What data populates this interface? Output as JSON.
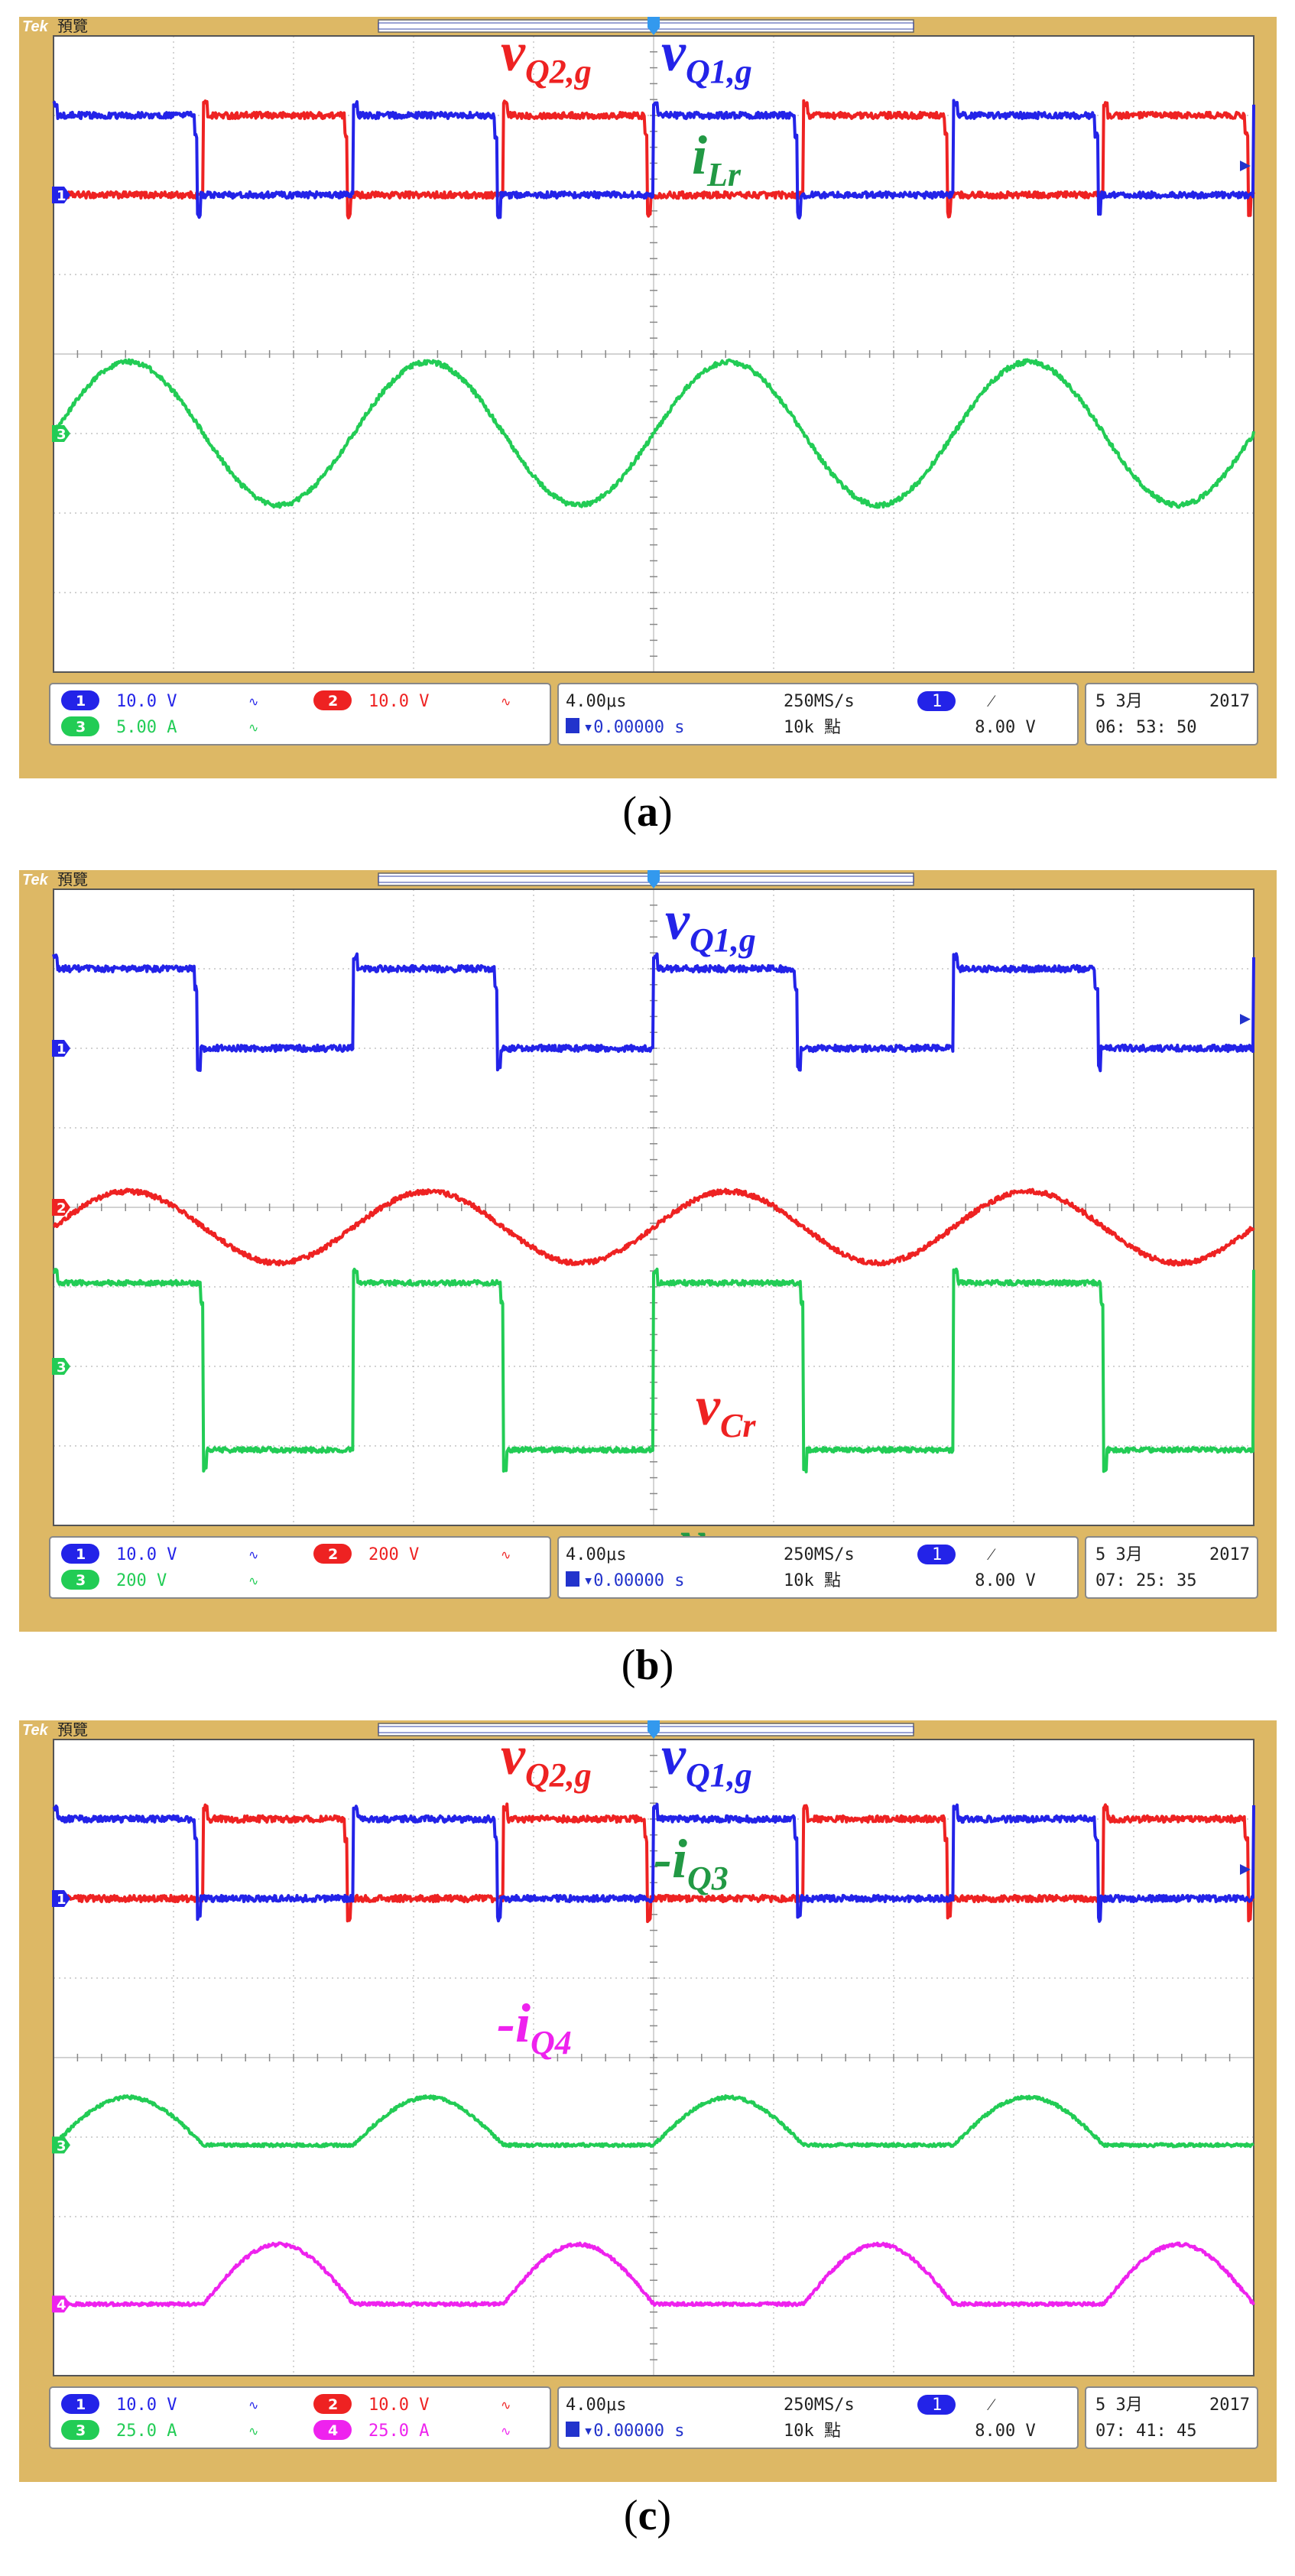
{
  "colors": {
    "ch1": "#2323e8",
    "ch2": "#ee2222",
    "ch3": "#22cc55",
    "ch4": "#ee22ee",
    "bezel": "#ddb865",
    "screen": "#ffffff",
    "grid": "#b8b8b8",
    "label_ch3": "#229944"
  },
  "panels": [
    {
      "id": "a",
      "caption": "a",
      "header": {
        "brand": "Tek",
        "mode": "預覽"
      },
      "chart_data": {
        "type": "line",
        "title": "",
        "xlabel": "",
        "ylabel": "",
        "x_unit": "μs",
        "xlim": [
          -20,
          20
        ],
        "ylim": [
          -4,
          4
        ],
        "grid": true,
        "series": [
          {
            "name": "vQ2,g",
            "channel": 2,
            "values": {
              "kind": "square",
              "period_us": 10.0,
              "phase_us": 5.0,
              "duty": 0.48,
              "hi_div": 3.0,
              "lo_div": 2.0,
              "noise": 0.04
            }
          },
          {
            "name": "vQ1,g",
            "channel": 1,
            "values": {
              "kind": "square",
              "period_us": 10.0,
              "phase_us": 0.0,
              "duty": 0.48,
              "hi_div": 3.0,
              "lo_div": 2.0,
              "noise": 0.04
            }
          },
          {
            "name": "iLr",
            "channel": 3,
            "values": {
              "kind": "sine",
              "period_us": 10.0,
              "phase_us": 0.0,
              "amplitude_div": 0.9,
              "offset_div": -1.0,
              "noise": 0.03
            }
          }
        ],
        "trace_labels": [
          {
            "base": "v",
            "sub": "Q2,g",
            "sign": "",
            "channel": 2
          },
          {
            "base": "v",
            "sub": "Q1,g",
            "sign": "",
            "channel": 1
          },
          {
            "base": "i",
            "sub": "Lr",
            "sign": "",
            "channel": 3
          }
        ]
      },
      "markers": [
        {
          "text": "1",
          "channel": 1
        },
        {
          "text": "3",
          "channel": 3
        }
      ],
      "status": {
        "row1": [
          {
            "badge": "1",
            "channel": 1,
            "value": "10.0 V"
          },
          {
            "badge": "2",
            "channel": 2,
            "value": "10.0 V"
          }
        ],
        "row2": [
          {
            "badge": "3",
            "channel": 3,
            "value": "5.00 A"
          }
        ],
        "timebase": "4.00μs",
        "delay": "▾0.00000 s",
        "sample_rate": "250MS/s",
        "record": "10k 點",
        "trigger_channel": "1",
        "trigger_slope": "⁄",
        "trigger_level": "8.00 V",
        "date": "5 3月",
        "year": "2017",
        "time": "06: 53: 50"
      }
    },
    {
      "id": "b",
      "caption": "b",
      "header": {
        "brand": "Tek",
        "mode": "預覽"
      },
      "chart_data": {
        "type": "line",
        "title": "",
        "xlabel": "",
        "ylabel": "",
        "x_unit": "μs",
        "xlim": [
          -20,
          20
        ],
        "ylim": [
          -4,
          4
        ],
        "grid": true,
        "series": [
          {
            "name": "vQ1,g",
            "channel": 1,
            "values": {
              "kind": "square",
              "period_us": 10.0,
              "phase_us": 0.0,
              "duty": 0.48,
              "hi_div": 3.0,
              "lo_div": 2.0,
              "noise": 0.04
            }
          },
          {
            "name": "vCr",
            "channel": 2,
            "values": {
              "kind": "sine",
              "period_us": 10.0,
              "phase_us": 0.0,
              "amplitude_div": 0.45,
              "offset_div": -0.25,
              "noise": 0.03
            }
          },
          {
            "name": "vab",
            "channel": 3,
            "values": {
              "kind": "square",
              "period_us": 10.0,
              "phase_us": 0.0,
              "duty": 0.5,
              "hi_div": -0.95,
              "lo_div": -3.05,
              "noise": 0.03
            }
          }
        ],
        "trace_labels": [
          {
            "base": "v",
            "sub": "Q1,g",
            "sign": "",
            "channel": 1
          },
          {
            "base": "v",
            "sub": "Cr",
            "sign": "",
            "channel": 2
          },
          {
            "base": "v",
            "sub": "ab",
            "sign": "",
            "channel": 3
          }
        ]
      },
      "markers": [
        {
          "text": "1",
          "channel": 1
        },
        {
          "text": "2",
          "channel": 2
        },
        {
          "text": "3",
          "channel": 3
        }
      ],
      "status": {
        "row1": [
          {
            "badge": "1",
            "channel": 1,
            "value": "10.0 V"
          },
          {
            "badge": "2",
            "channel": 2,
            "value": "200 V"
          }
        ],
        "row2": [
          {
            "badge": "3",
            "channel": 3,
            "value": "200 V"
          }
        ],
        "timebase": "4.00μs",
        "delay": "▾0.00000 s",
        "sample_rate": "250MS/s",
        "record": "10k 點",
        "trigger_channel": "1",
        "trigger_slope": "⁄",
        "trigger_level": "8.00 V",
        "date": "5 3月",
        "year": "2017",
        "time": "07: 25: 35"
      }
    },
    {
      "id": "c",
      "caption": "c",
      "header": {
        "brand": "Tek",
        "mode": "預覽"
      },
      "chart_data": {
        "type": "line",
        "title": "",
        "xlabel": "",
        "ylabel": "",
        "x_unit": "μs",
        "xlim": [
          -20,
          20
        ],
        "ylim": [
          -4,
          4
        ],
        "grid": true,
        "series": [
          {
            "name": "vQ2,g",
            "channel": 2,
            "values": {
              "kind": "square",
              "period_us": 10.0,
              "phase_us": 5.0,
              "duty": 0.48,
              "hi_div": 3.0,
              "lo_div": 2.0,
              "noise": 0.04
            }
          },
          {
            "name": "vQ1,g",
            "channel": 1,
            "values": {
              "kind": "square",
              "period_us": 10.0,
              "phase_us": 0.0,
              "duty": 0.48,
              "hi_div": 3.0,
              "lo_div": 2.0,
              "noise": 0.04
            }
          },
          {
            "name": "-iQ3",
            "channel": 3,
            "values": {
              "kind": "halfsine",
              "period_us": 10.0,
              "phase_us": 0.0,
              "amplitude_div": 0.6,
              "offset_div": -1.1,
              "noise": 0.02
            }
          },
          {
            "name": "-iQ4",
            "channel": 4,
            "values": {
              "kind": "halfsine",
              "period_us": 10.0,
              "phase_us": 5.0,
              "amplitude_div": 0.75,
              "offset_div": -3.1,
              "noise": 0.02
            }
          }
        ],
        "trace_labels": [
          {
            "base": "v",
            "sub": "Q2,g",
            "sign": "",
            "channel": 2
          },
          {
            "base": "v",
            "sub": "Q1,g",
            "sign": "",
            "channel": 1
          },
          {
            "base": "i",
            "sub": "Q3",
            "sign": "-",
            "channel": 3
          },
          {
            "base": "i",
            "sub": "Q4",
            "sign": "-",
            "channel": 4
          }
        ]
      },
      "markers": [
        {
          "text": "1",
          "channel": 1
        },
        {
          "text": "3",
          "channel": 3
        },
        {
          "text": "4",
          "channel": 4
        }
      ],
      "status": {
        "row1": [
          {
            "badge": "1",
            "channel": 1,
            "value": "10.0 V"
          },
          {
            "badge": "2",
            "channel": 2,
            "value": "10.0 V"
          }
        ],
        "row2": [
          {
            "badge": "3",
            "channel": 3,
            "value": "25.0 A"
          },
          {
            "badge": "4",
            "channel": 4,
            "value": "25.0 A"
          }
        ],
        "timebase": "4.00μs",
        "delay": "▾0.00000 s",
        "sample_rate": "250MS/s",
        "record": "10k 點",
        "trigger_channel": "1",
        "trigger_slope": "⁄",
        "trigger_level": "8.00 V",
        "date": "5 3月",
        "year": "2017",
        "time": "07: 41: 45"
      }
    }
  ]
}
